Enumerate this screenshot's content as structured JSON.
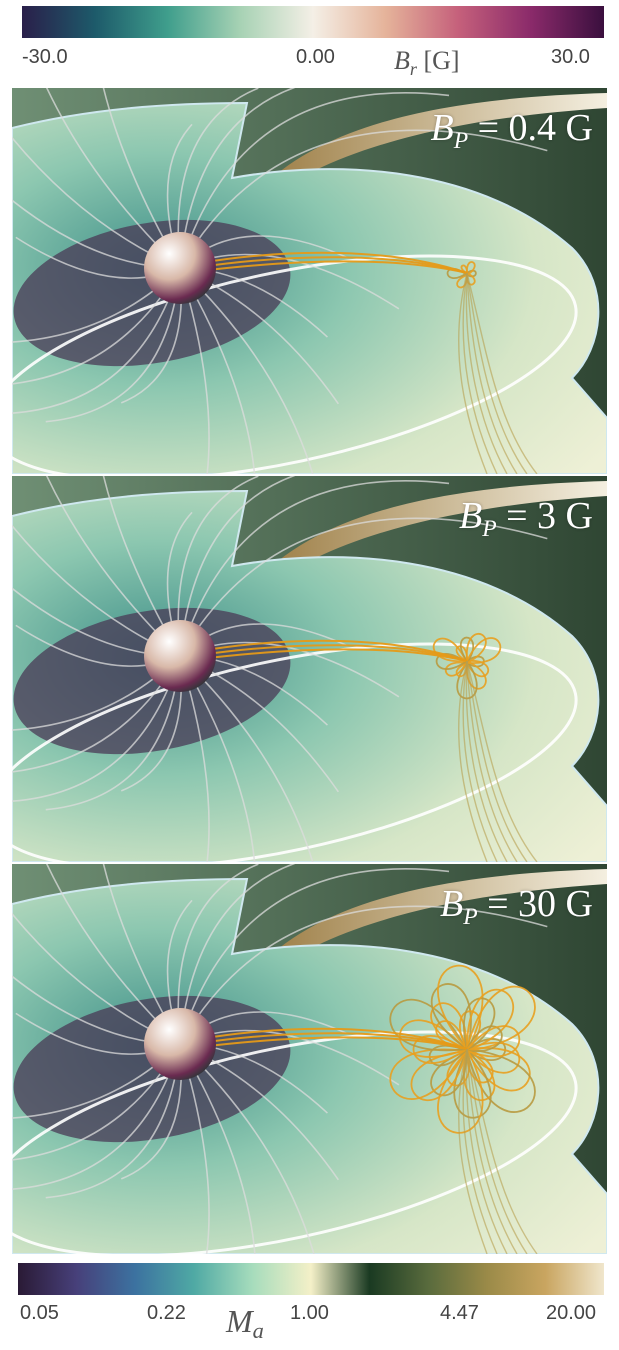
{
  "colorbar_top": {
    "ticks": [
      "-30.0",
      "0.00",
      "30.0"
    ],
    "title_symbol": "B",
    "title_subscript": "r",
    "title_unit": "[G]",
    "gradient_colors": [
      "#2a1f4a",
      "#1d5a6a",
      "#3f9e8c",
      "#a7d2b4",
      "#f4efe6",
      "#e5b39a",
      "#c5607b",
      "#8a2a6a",
      "#3a0f3e"
    ]
  },
  "colorbar_bottom": {
    "ticks": [
      "0.05",
      "0.22",
      "1.00",
      "4.47",
      "20.00"
    ],
    "title_symbol": "M",
    "title_subscript": "a",
    "gradient_colors": [
      "#2a1a35",
      "#47407a",
      "#3c72a0",
      "#4fa9a4",
      "#a6dcbc",
      "#f4f0c8",
      "#1a3a22",
      "#596b3d",
      "#9a8a48",
      "#c9a560",
      "#f0e6cc"
    ]
  },
  "panels": [
    {
      "label_symbol": "B",
      "label_subscript": "P",
      "label_value": " = 0.4 G",
      "bp": 0.4
    },
    {
      "label_symbol": "B",
      "label_subscript": "P",
      "label_value": " = 3 G",
      "bp": 3
    },
    {
      "label_symbol": "B",
      "label_subscript": "P",
      "label_value": " = 30 G",
      "bp": 30
    }
  ]
}
